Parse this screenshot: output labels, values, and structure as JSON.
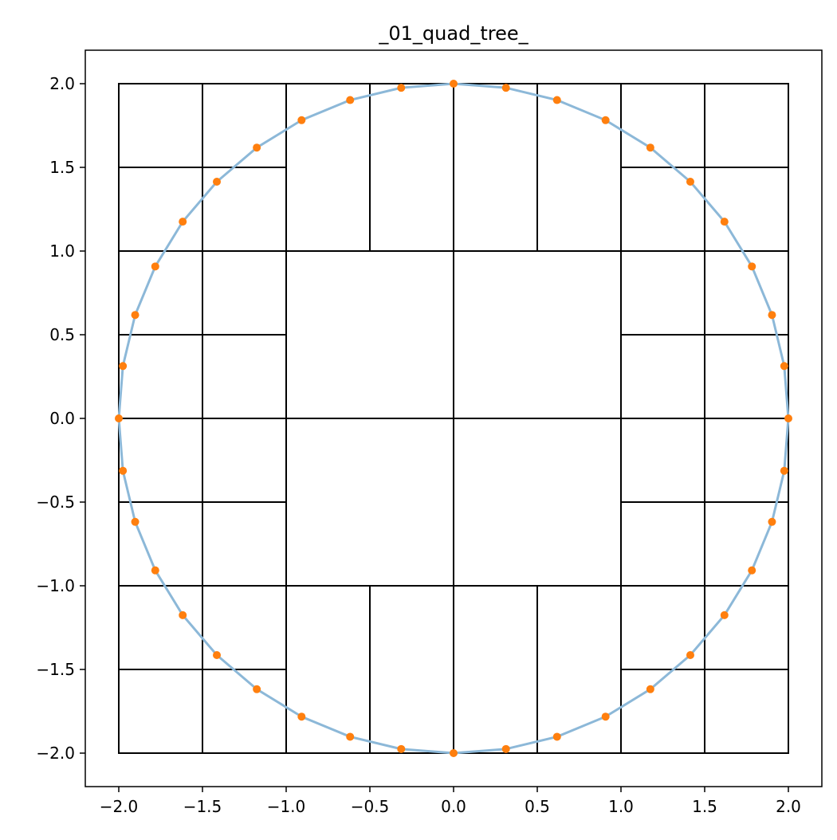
{
  "chart_data": {
    "type": "line",
    "title": "_01_quad_tree_",
    "xlabel": "",
    "ylabel": "",
    "xlim": [
      -2.2,
      2.2
    ],
    "ylim": [
      -2.2,
      2.2
    ],
    "grid": false,
    "aspect": "equal",
    "x_ticks": [
      -2.0,
      -1.5,
      -1.0,
      -0.5,
      0.0,
      0.5,
      1.0,
      1.5,
      2.0
    ],
    "y_ticks": [
      -2.0,
      -1.5,
      -1.0,
      -0.5,
      0.0,
      0.5,
      1.0,
      1.5,
      2.0
    ],
    "x_tick_labels": [
      "−2.0",
      "−1.5",
      "−1.0",
      "−0.5",
      "0.0",
      "0.5",
      "1.0",
      "1.5",
      "2.0"
    ],
    "y_tick_labels": [
      "−2.0",
      "−1.5",
      "−1.0",
      "−0.5",
      "0.0",
      "0.5",
      "1.0",
      "1.5",
      "2.0"
    ],
    "colors": {
      "circle_line": "#8cb8d8",
      "points": "#ff7f0e",
      "cells": "#000000",
      "axes": "#000000"
    },
    "circle": {
      "center": [
        0,
        0
      ],
      "radius": 2.0,
      "n_points": 40
    },
    "quad_tree_cells": [
      [
        -2.0,
        1.5,
        -1.5,
        2.0
      ],
      [
        -1.5,
        1.5,
        -1.0,
        2.0
      ],
      [
        -2.0,
        1.0,
        -1.5,
        1.5
      ],
      [
        -1.5,
        1.0,
        -1.0,
        1.5
      ],
      [
        -1.0,
        1.0,
        -0.5,
        2.0
      ],
      [
        -0.5,
        1.0,
        0.0,
        2.0
      ],
      [
        0.0,
        1.0,
        0.5,
        2.0
      ],
      [
        0.5,
        1.0,
        1.0,
        2.0
      ],
      [
        1.0,
        1.5,
        1.5,
        2.0
      ],
      [
        1.5,
        1.5,
        2.0,
        2.0
      ],
      [
        1.0,
        1.0,
        1.5,
        1.5
      ],
      [
        1.5,
        1.0,
        2.0,
        1.5
      ],
      [
        -2.0,
        0.5,
        -1.5,
        1.0
      ],
      [
        -1.5,
        0.5,
        -1.0,
        1.0
      ],
      [
        -2.0,
        0.0,
        -1.5,
        0.5
      ],
      [
        -1.5,
        0.0,
        -1.0,
        0.5
      ],
      [
        -1.0,
        0.0,
        0.0,
        1.0
      ],
      [
        0.0,
        0.0,
        1.0,
        1.0
      ],
      [
        1.0,
        0.5,
        1.5,
        1.0
      ],
      [
        1.5,
        0.5,
        2.0,
        1.0
      ],
      [
        1.0,
        0.0,
        1.5,
        0.5
      ],
      [
        1.5,
        0.0,
        2.0,
        0.5
      ],
      [
        -2.0,
        -0.5,
        -1.5,
        0.0
      ],
      [
        -1.5,
        -0.5,
        -1.0,
        0.0
      ],
      [
        -2.0,
        -1.0,
        -1.5,
        -0.5
      ],
      [
        -1.5,
        -1.0,
        -1.0,
        -0.5
      ],
      [
        -1.0,
        -1.0,
        0.0,
        0.0
      ],
      [
        0.0,
        -1.0,
        1.0,
        0.0
      ],
      [
        1.0,
        -0.5,
        1.5,
        0.0
      ],
      [
        1.5,
        -0.5,
        2.0,
        0.0
      ],
      [
        1.0,
        -1.0,
        1.5,
        -0.5
      ],
      [
        1.5,
        -1.0,
        2.0,
        -0.5
      ],
      [
        -2.0,
        -1.5,
        -1.5,
        -1.0
      ],
      [
        -1.5,
        -1.5,
        -1.0,
        -1.0
      ],
      [
        -2.0,
        -2.0,
        -1.5,
        -1.5
      ],
      [
        -1.5,
        -2.0,
        -1.0,
        -1.5
      ],
      [
        -1.0,
        -2.0,
        -0.5,
        -1.0
      ],
      [
        -0.5,
        -2.0,
        0.0,
        -1.0
      ],
      [
        0.0,
        -2.0,
        0.5,
        -1.0
      ],
      [
        0.5,
        -2.0,
        1.0,
        -1.0
      ],
      [
        1.0,
        -1.5,
        1.5,
        -1.0
      ],
      [
        1.5,
        -1.5,
        2.0,
        -1.0
      ],
      [
        1.0,
        -2.0,
        1.5,
        -1.5
      ],
      [
        1.5,
        -2.0,
        2.0,
        -1.5
      ]
    ]
  }
}
